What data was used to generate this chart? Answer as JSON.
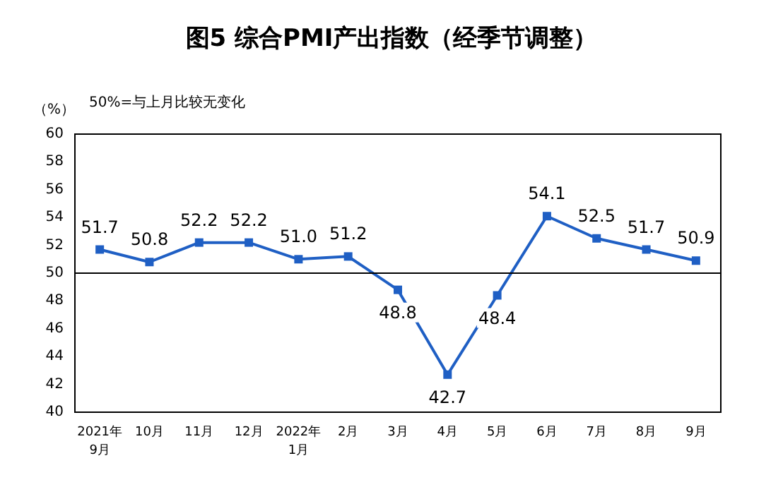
{
  "chart_data": {
    "type": "line",
    "title": "图5 综合PMI产出指数（经季节调整）",
    "ylabel": "（%）",
    "annotations": [
      "50%=与上月比较无变化"
    ],
    "categories": [
      "2021年\n9月",
      "10月",
      "11月",
      "12月",
      "2022年\n1月",
      "2月",
      "3月",
      "4月",
      "5月",
      "6月",
      "7月",
      "8月",
      "9月"
    ],
    "series": [
      {
        "color": "#1f5fc4",
        "values": [
          51.7,
          50.8,
          52.2,
          52.2,
          51.0,
          51.2,
          48.8,
          42.7,
          48.4,
          54.1,
          52.5,
          51.7,
          50.9
        ],
        "value_labels": [
          "51.7",
          "50.8",
          "52.2",
          "52.2",
          "51.0",
          "51.2",
          "48.8",
          "42.7",
          "48.4",
          "54.1",
          "52.5",
          "51.7",
          "50.9"
        ]
      }
    ],
    "ylim": [
      40,
      60
    ],
    "yticks": [
      40,
      42,
      44,
      46,
      48,
      50,
      52,
      54,
      56,
      58,
      60
    ],
    "grid": false,
    "marker": "square",
    "line_style": "solid",
    "ref_lines": [
      {
        "axis": "y",
        "value": 50,
        "color": "#000000",
        "line_style": "solid"
      }
    ]
  }
}
